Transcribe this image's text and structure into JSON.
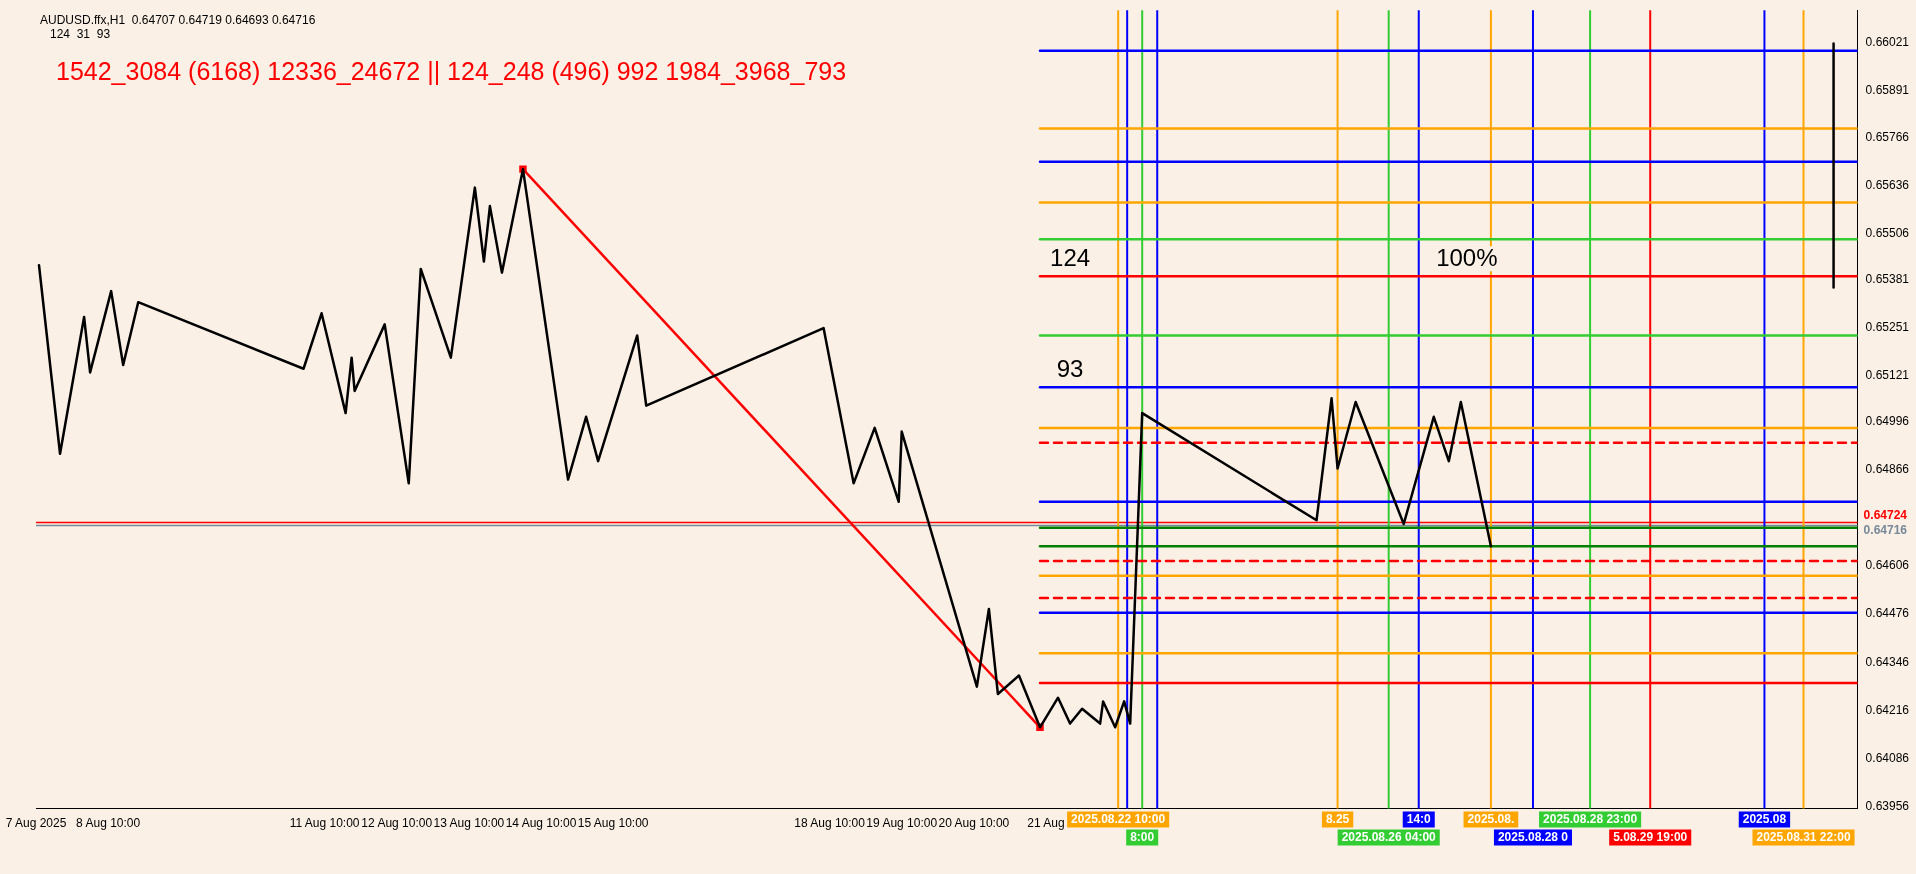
{
  "chart_data": {
    "type": "line",
    "title": "AUDUSD.ffx,H1  0.64707 0.64719 0.64693 0.64716",
    "subtitle": "124  31  93",
    "annotations": [
      "1542_3084 (6168) 12336_24672 || 124_248 (496) 992 1984_3968_793",
      {
        "text": "124",
        "x": "2025-08-21T18:00",
        "y": 0.6539
      },
      {
        "text": "100%",
        "x": "2025-08-27T06:00",
        "y": 0.6539
      },
      {
        "text": "93",
        "x": "2025-08-21T18:00",
        "y": 0.6509
      }
    ],
    "xlim": [
      "2025-08-07T10:00",
      "2025-09-01T16:00"
    ],
    "xticks": [
      {
        "value": "2025-08-07T10:00",
        "label": "7 Aug 2025"
      },
      {
        "value": "2025-08-08T10:00",
        "label": "8 Aug 10:00"
      },
      {
        "value": "2025-08-11T10:00",
        "label": "11 Aug 10:00"
      },
      {
        "value": "2025-08-12T10:00",
        "label": "12 Aug 10:00"
      },
      {
        "value": "2025-08-13T10:00",
        "label": "13 Aug 10:00"
      },
      {
        "value": "2025-08-14T10:00",
        "label": "14 Aug 10:00"
      },
      {
        "value": "2025-08-15T10:00",
        "label": "15 Aug 10:00"
      },
      {
        "value": "2025-08-18T10:00",
        "label": "18 Aug 10:00"
      },
      {
        "value": "2025-08-19T10:00",
        "label": "19 Aug 10:00"
      },
      {
        "value": "2025-08-20T10:00",
        "label": "20 Aug 10:00"
      },
      {
        "value": "2025-08-21T10:00",
        "label": "21 Aug"
      }
    ],
    "ylim": [
      0.6395,
      0.6611
    ],
    "yticks": [
      0.66021,
      0.65891,
      0.65766,
      0.65636,
      0.65506,
      0.65381,
      0.65251,
      0.65121,
      0.64996,
      0.64866,
      0.64606,
      0.64476,
      0.64346,
      0.64216,
      0.64086,
      0.63956
    ],
    "grid": false,
    "legend": false,
    "marker": "none",
    "series": [
      {
        "color": "#000000",
        "x": [
          "2025-08-07T11:00",
          "2025-08-07T18:00",
          "2025-08-08T02:00",
          "2025-08-08T04:00",
          "2025-08-08T11:00",
          "2025-08-08T15:00",
          "2025-08-08T20:00",
          "2025-08-11T03:00",
          "2025-08-11T09:00",
          "2025-08-11T17:00",
          "2025-08-11T19:00",
          "2025-08-11T20:00",
          "2025-08-12T06:00",
          "2025-08-12T14:00",
          "2025-08-12T18:00",
          "2025-08-13T04:00",
          "2025-08-13T12:00",
          "2025-08-13T15:00",
          "2025-08-13T17:00",
          "2025-08-13T21:00",
          "2025-08-14T04:00",
          "2025-08-14T19:00",
          "2025-08-15T01:00",
          "2025-08-15T05:00",
          "2025-08-15T18:00",
          "2025-08-15T21:00",
          "2025-08-18T08:00",
          "2025-08-18T18:00",
          "2025-08-19T01:00",
          "2025-08-19T09:00",
          "2025-08-19T10:00",
          "2025-08-20T11:00",
          "2025-08-20T15:00",
          "2025-08-20T18:00",
          "2025-08-21T01:00",
          "2025-08-21T08:00",
          "2025-08-21T14:00",
          "2025-08-21T18:00",
          "2025-08-21T22:00",
          "2025-08-22T04:00",
          "2025-08-22T05:00",
          "2025-08-22T09:00",
          "2025-08-22T12:00",
          "2025-08-22T14:00",
          "2025-08-22T18:00",
          "2025-08-25T04:00",
          "2025-08-25T09:00",
          "2025-08-25T11:00",
          "2025-08-25T17:00",
          "2025-08-26T09:00",
          "2025-08-26T19:00",
          "2025-08-27T00:00",
          "2025-08-27T04:00",
          "2025-08-27T14:00"
        ],
        "values": [
          0.6542,
          0.6491,
          0.6528,
          0.6513,
          0.6535,
          0.6515,
          0.6532,
          0.6514,
          0.6529,
          0.6502,
          0.6517,
          0.6508,
          0.6526,
          0.6483,
          0.6541,
          0.6517,
          0.6563,
          0.6543,
          0.6558,
          0.654,
          0.6568,
          0.6484,
          0.6501,
          0.6489,
          0.6523,
          0.6504,
          0.6525,
          0.6483,
          0.6498,
          0.6478,
          0.6497,
          0.6428,
          0.6449,
          0.6426,
          0.6431,
          0.6417,
          0.6425,
          0.6418,
          0.6422,
          0.6418,
          0.6424,
          0.6417,
          0.6424,
          0.6418,
          0.6502,
          0.6473,
          0.6506,
          0.6487,
          0.6505,
          0.6472,
          0.6501,
          0.6489,
          0.6505,
          0.6466
        ]
      },
      {
        "color": "#ff0000",
        "x": [
          "2025-08-14T04:00",
          "2025-08-21T08:00"
        ],
        "values": [
          0.6568,
          0.6417
        ],
        "marker": "square"
      },
      {
        "color": "#000000",
        "x": [
          "2025-09-01T08:00",
          "2025-09-01T08:00"
        ],
        "values": [
          0.6602,
          0.6536
        ]
      },
      {
        "color": "#0000ff",
        "x": [
          "2025-08-21T08:00",
          "2025-09-01T16:00"
        ],
        "values": [
          0.66,
          0.66
        ]
      },
      {
        "color": "#ffa500",
        "x": [
          "2025-08-21T08:00",
          "2025-09-01T16:00"
        ],
        "values": [
          0.6579,
          0.6579
        ]
      },
      {
        "color": "#0000ff",
        "x": [
          "2025-08-21T08:00",
          "2025-09-01T16:00"
        ],
        "values": [
          0.657,
          0.657
        ]
      },
      {
        "color": "#ffa500",
        "x": [
          "2025-08-21T08:00",
          "2025-09-01T16:00"
        ],
        "values": [
          0.6559,
          0.6559
        ]
      },
      {
        "color": "#32cd32",
        "x": [
          "2025-08-21T08:00",
          "2025-09-01T16:00"
        ],
        "values": [
          0.6549,
          0.6549
        ]
      },
      {
        "color": "#ff0000",
        "x": [
          "2025-08-21T08:00",
          "2025-09-01T16:00"
        ],
        "values": [
          0.6539,
          0.6539
        ]
      },
      {
        "color": "#32cd32",
        "x": [
          "2025-08-21T08:00",
          "2025-09-01T16:00"
        ],
        "values": [
          0.6523,
          0.6523
        ]
      },
      {
        "color": "#0000ff",
        "x": [
          "2025-08-21T08:00",
          "2025-09-01T16:00"
        ],
        "values": [
          0.6509,
          0.6509
        ]
      },
      {
        "color": "#ffa500",
        "x": [
          "2025-08-21T08:00",
          "2025-09-01T16:00"
        ],
        "values": [
          0.6498,
          0.6498
        ]
      },
      {
        "color": "#ff0000",
        "x": [
          "2025-08-21T08:00",
          "2025-09-01T16:00"
        ],
        "values": [
          0.6494,
          0.6494
        ],
        "line_style": "dashed"
      },
      {
        "color": "#0000ff",
        "x": [
          "2025-08-21T08:00",
          "2025-09-01T16:00"
        ],
        "values": [
          0.6478,
          0.6478
        ]
      },
      {
        "color": "#008000",
        "x": [
          "2025-08-21T08:00",
          "2025-09-01T16:00"
        ],
        "values": [
          0.6471,
          0.6471
        ]
      },
      {
        "color": "#008000",
        "x": [
          "2025-08-21T08:00",
          "2025-09-01T16:00"
        ],
        "values": [
          0.6466,
          0.6466
        ]
      },
      {
        "color": "#ff0000",
        "x": [
          "2025-08-21T08:00",
          "2025-09-01T16:00"
        ],
        "values": [
          0.6462,
          0.6462
        ],
        "line_style": "dashed"
      },
      {
        "color": "#ffa500",
        "x": [
          "2025-08-21T08:00",
          "2025-09-01T16:00"
        ],
        "values": [
          0.6458,
          0.6458
        ]
      },
      {
        "color": "#ff0000",
        "x": [
          "2025-08-21T08:00",
          "2025-09-01T16:00"
        ],
        "values": [
          0.6452,
          0.6452
        ],
        "line_style": "dashed"
      },
      {
        "color": "#0000ff",
        "x": [
          "2025-08-21T08:00",
          "2025-09-01T16:00"
        ],
        "values": [
          0.6448,
          0.6448
        ]
      },
      {
        "color": "#ffa500",
        "x": [
          "2025-08-21T08:00",
          "2025-09-01T16:00"
        ],
        "values": [
          0.6437,
          0.6437
        ]
      },
      {
        "color": "#ff0000",
        "x": [
          "2025-08-21T08:00",
          "2025-09-01T16:00"
        ],
        "values": [
          0.6429,
          0.6429
        ]
      }
    ],
    "ref_lines": [
      {
        "axis": "y",
        "value": 0.64724,
        "label": "0.64724",
        "color": "#ff0000"
      },
      {
        "axis": "y",
        "value": 0.64716,
        "label": "0.64716",
        "color": "#778899"
      },
      {
        "axis": "x",
        "value": "2025-08-22T10:00",
        "label": "2025.08.22 10:00",
        "color": "#ffa500"
      },
      {
        "axis": "x",
        "value": "2025-08-22T13:00",
        "color": "#0000ff"
      },
      {
        "axis": "x",
        "value": "2025-08-22T18:00",
        "label": "8:00",
        "color": "#32cd32"
      },
      {
        "axis": "x",
        "value": "2025-08-22T23:00",
        "color": "#0000ff"
      },
      {
        "axis": "x",
        "value": "2025-08-25T11:00",
        "label": "8.25",
        "color": "#ffa500"
      },
      {
        "axis": "x",
        "value": "2025-08-26T04:00",
        "label": "2025.08.26 04:00",
        "color": "#32cd32"
      },
      {
        "axis": "x",
        "value": "2025-08-26T14:00",
        "label": "14:0",
        "color": "#0000ff"
      },
      {
        "axis": "x",
        "value": "2025-08-27T14:00",
        "label": "2025.08.",
        "color": "#ffa500"
      },
      {
        "axis": "x",
        "value": "2025-08-28T04:00",
        "label": "2025.08.28 0",
        "color": "#0000ff"
      },
      {
        "axis": "x",
        "value": "2025-08-28T23:00",
        "label": "2025.08.28 23:00",
        "color": "#32cd32"
      },
      {
        "axis": "x",
        "value": "2025-08-29T19:00",
        "label": "5.08.29 19:00",
        "color": "#ff0000"
      },
      {
        "axis": "x",
        "value": "2025-08-31T09:00",
        "label": "2025.08",
        "color": "#0000ff"
      },
      {
        "axis": "x",
        "value": "2025-08-31T22:00",
        "label": "2025.08.31 22:00",
        "color": "#ffa500"
      }
    ]
  }
}
